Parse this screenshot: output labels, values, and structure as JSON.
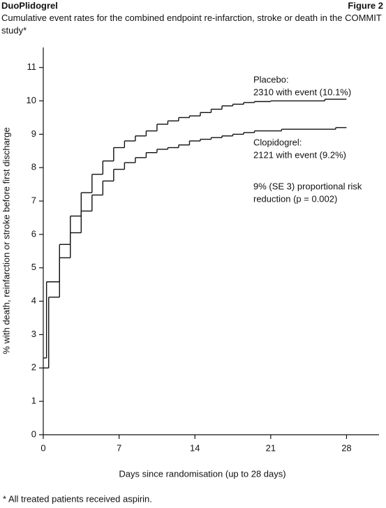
{
  "header": {
    "title": "DuoPlidogrel",
    "figure": "Figure 2"
  },
  "chart_data": {
    "type": "line",
    "step": true,
    "title": "Cumulative event rates for the combined endpoint re-infarction, stroke or death in the COMMIT study*",
    "x_label": "Days since randomisation (up to 28 days)",
    "y_label": "% with death, reinfarction or stroke before first discharge",
    "xlim": [
      0,
      31
    ],
    "xticks": [
      0,
      7,
      14,
      21,
      28
    ],
    "ylim": [
      0,
      11.6
    ],
    "yticks": [
      0,
      1,
      2,
      3,
      4,
      5,
      6,
      7,
      8,
      9,
      10,
      11
    ],
    "grid": false,
    "series": [
      {
        "name": "Placebo",
        "color": "#111111",
        "x": [
          0,
          0.3,
          1.5,
          2.5,
          3.5,
          4.5,
          5.5,
          6.5,
          7.5,
          8.5,
          9.5,
          10.5,
          11.5,
          12.5,
          13.5,
          14.5,
          15.5,
          16.5,
          17.5,
          18.5,
          19.5,
          21,
          26,
          28
        ],
        "values": [
          2.3,
          4.58,
          5.7,
          6.55,
          7.25,
          7.8,
          8.2,
          8.6,
          8.8,
          8.95,
          9.1,
          9.3,
          9.4,
          9.5,
          9.55,
          9.65,
          9.75,
          9.85,
          9.9,
          9.95,
          9.98,
          10.0,
          10.05,
          10.05
        ]
      },
      {
        "name": "Clopidogrel",
        "color": "#111111",
        "x": [
          0,
          0.5,
          1.5,
          2.5,
          3.5,
          4.5,
          5.5,
          6.5,
          7.5,
          8.5,
          9.5,
          10.5,
          11.5,
          12.5,
          13.5,
          14.5,
          15.5,
          16.5,
          17.5,
          18.5,
          19.5,
          22,
          27,
          28
        ],
        "values": [
          2.0,
          4.12,
          5.3,
          6.05,
          6.7,
          7.18,
          7.6,
          7.95,
          8.15,
          8.3,
          8.45,
          8.55,
          8.6,
          8.68,
          8.8,
          8.85,
          8.9,
          8.95,
          9.0,
          9.05,
          9.1,
          9.15,
          9.2,
          9.2
        ]
      }
    ],
    "annotations": [
      "Placebo:",
      "2310 with event (10.1%)",
      "Clopidogrel:",
      "2121 with event (9.2%)",
      "9% (SE 3) proportional risk",
      "reduction (p = 0.002)"
    ]
  },
  "footnote": "* All treated patients received aspirin."
}
